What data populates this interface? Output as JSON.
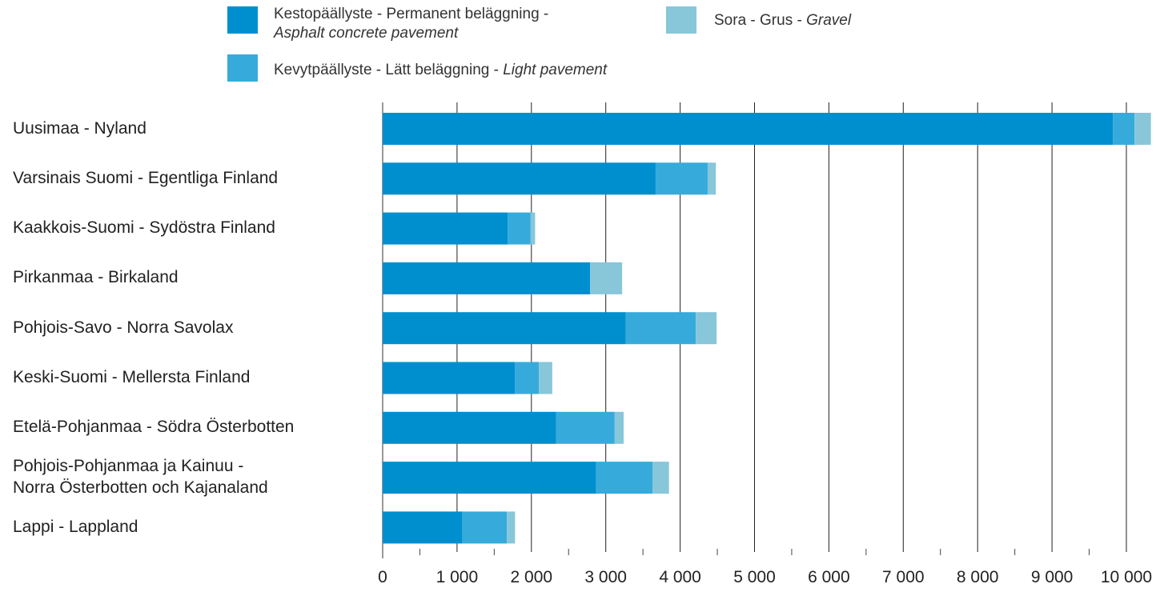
{
  "chart_data": {
    "type": "bar",
    "orientation": "horizontal",
    "stacked": true,
    "categories": [
      "Uusimaa - Nyland",
      "Varsinais Suomi - Egentliga Finland",
      "Kaakkois-Suomi - Sydöstra Finland",
      "Pirkanmaa - Birkaland",
      "Pohjois-Savo - Norra Savolax",
      "Keski-Suomi - Mellersta Finland",
      "Etelä-Pohjanmaa - Södra Österbotten",
      "Pohjois-Pohjanmaa ja Kainuu - Norra Österbotten och Kajanaland",
      "Lappi - Lappland"
    ],
    "category_lines": [
      [
        "Uusimaa - Nyland"
      ],
      [
        "Varsinais Suomi - Egentliga Finland"
      ],
      [
        "Kaakkois-Suomi - Sydöstra Finland"
      ],
      [
        "Pirkanmaa - Birkaland"
      ],
      [
        "Pohjois-Savo - Norra Savolax"
      ],
      [
        "Keski-Suomi - Mellersta Finland"
      ],
      [
        "Etelä-Pohjanmaa - Södra Österbotten"
      ],
      [
        "Pohjois-Pohjanmaa ja Kainuu -",
        "Norra Österbotten och Kajanaland"
      ],
      [
        "Lappi - Lappland"
      ]
    ],
    "series": [
      {
        "name": "Kestopäällyste - Permanent beläggning - Asphalt concrete pavement",
        "name_plain": "Kestopäällyste - Permanent beläggning -",
        "name_italic": "Asphalt concrete pavement",
        "color": "#008fce",
        "values": [
          9820,
          3670,
          1680,
          2790,
          3270,
          1780,
          2330,
          2870,
          1070
        ]
      },
      {
        "name": "Kevytpäällyste - Lätt beläggning - Light pavement",
        "name_plain": "Kevytpäällyste - Lätt beläggning -",
        "name_italic": "Light pavement",
        "color": "#36abdb",
        "values": [
          290,
          700,
          310,
          0,
          940,
          320,
          790,
          760,
          600
        ]
      },
      {
        "name": "Sora - Grus - Gravel",
        "name_plain": "Sora - Grus -",
        "name_italic": "Gravel",
        "color": "#88c6da",
        "values": [
          220,
          110,
          60,
          430,
          280,
          180,
          120,
          220,
          110
        ]
      }
    ],
    "xlim": [
      0,
      10000
    ],
    "x_ticks": [
      0,
      1000,
      2000,
      3000,
      4000,
      5000,
      6000,
      7000,
      8000,
      9000,
      10000
    ],
    "x_tick_labels": [
      "0",
      "1 000",
      "2 000",
      "3 000",
      "4 000",
      "5 000",
      "6 000",
      "7 000",
      "8 000",
      "9 000",
      "10 000"
    ],
    "grid": true,
    "legend_position": "top",
    "title": "",
    "xlabel": "",
    "ylabel": ""
  }
}
